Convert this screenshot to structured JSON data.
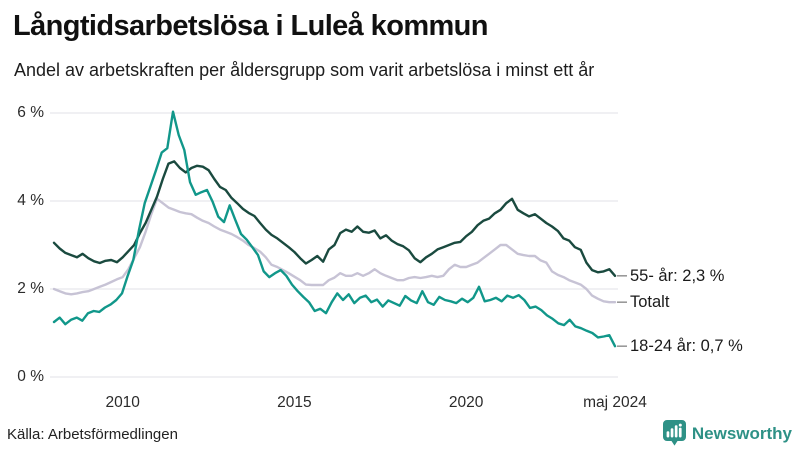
{
  "title": "Långtidsarbetslösa i Luleå kommun",
  "subtitle": "Andel av arbetskraften per åldersgrupp som varit arbetslösa i minst ett år",
  "source": "Källa: Arbetsförmedlingen",
  "branding": {
    "name": "Newsworthy"
  },
  "colors": {
    "background": "#ffffff",
    "title": "#111111",
    "text": "#1d1d1d",
    "tick_text": "#2b2b2b",
    "grid": "#e8e8ec",
    "label_dash": "#999999",
    "brand_teal": "#2e9186"
  },
  "chart_data": {
    "type": "line",
    "title": "Långtidsarbetslösa i Luleå kommun",
    "subtitle": "Andel av arbetskraften per åldersgrupp som varit arbetslösa i minst ett år",
    "unit": "% av arbetskraften",
    "x_start": "2008-01",
    "x_end": "2024-05",
    "x_step_months": 2,
    "ylim": [
      0,
      6.6
    ],
    "grid": true,
    "legend_position": "right-end-labels",
    "y_ticks": [
      {
        "value": 6,
        "label": "6 %"
      },
      {
        "value": 4,
        "label": "4 %"
      },
      {
        "value": 2,
        "label": "2 %"
      },
      {
        "value": 0,
        "label": "0 %"
      }
    ],
    "x_ticks": [
      {
        "label": "2010",
        "month_index": 24
      },
      {
        "label": "2015",
        "month_index": 84
      },
      {
        "label": "2020",
        "month_index": 144
      },
      {
        "label": "maj 2024",
        "month_index": 196
      }
    ],
    "series": [
      {
        "name": "Totalt",
        "end_label": "Totalt",
        "end_value": "1,7 %",
        "color": "#c7c3d5",
        "values": [
          2.0,
          1.95,
          1.9,
          1.88,
          1.9,
          1.93,
          1.95,
          2.0,
          2.05,
          2.1,
          2.16,
          2.22,
          2.27,
          2.45,
          2.7,
          2.95,
          3.3,
          3.7,
          4.05,
          3.95,
          3.85,
          3.8,
          3.75,
          3.72,
          3.7,
          3.62,
          3.55,
          3.5,
          3.42,
          3.35,
          3.3,
          3.25,
          3.18,
          3.1,
          3.0,
          2.93,
          2.85,
          2.72,
          2.55,
          2.5,
          2.43,
          2.36,
          2.28,
          2.2,
          2.1,
          2.09,
          2.09,
          2.09,
          2.2,
          2.26,
          2.36,
          2.3,
          2.3,
          2.36,
          2.3,
          2.36,
          2.45,
          2.36,
          2.3,
          2.25,
          2.2,
          2.2,
          2.25,
          2.27,
          2.25,
          2.27,
          2.3,
          2.27,
          2.3,
          2.45,
          2.55,
          2.5,
          2.5,
          2.55,
          2.6,
          2.7,
          2.8,
          2.9,
          3.0,
          3.0,
          2.9,
          2.8,
          2.77,
          2.75,
          2.75,
          2.65,
          2.6,
          2.4,
          2.32,
          2.27,
          2.2,
          2.15,
          2.1,
          2.0,
          1.85,
          1.78,
          1.72,
          1.7,
          1.7
        ]
      },
      {
        "name": "55- år",
        "end_label": "55- år: 2,3 %",
        "end_value": "2,3 %",
        "color": "#1a4a3f",
        "values": [
          3.05,
          2.92,
          2.82,
          2.77,
          2.72,
          2.8,
          2.7,
          2.63,
          2.59,
          2.64,
          2.66,
          2.61,
          2.72,
          2.86,
          3.0,
          3.27,
          3.5,
          3.8,
          4.1,
          4.5,
          4.85,
          4.9,
          4.75,
          4.65,
          4.75,
          4.8,
          4.78,
          4.7,
          4.5,
          4.32,
          4.25,
          4.07,
          3.95,
          3.82,
          3.73,
          3.66,
          3.5,
          3.35,
          3.23,
          3.15,
          3.05,
          2.95,
          2.84,
          2.7,
          2.58,
          2.66,
          2.75,
          2.62,
          2.9,
          3.0,
          3.27,
          3.35,
          3.3,
          3.42,
          3.3,
          3.28,
          3.33,
          3.15,
          3.22,
          3.1,
          3.02,
          2.97,
          2.88,
          2.7,
          2.61,
          2.72,
          2.8,
          2.9,
          2.95,
          3.0,
          3.05,
          3.07,
          3.2,
          3.3,
          3.45,
          3.55,
          3.6,
          3.72,
          3.8,
          3.95,
          4.05,
          3.8,
          3.72,
          3.65,
          3.7,
          3.6,
          3.5,
          3.42,
          3.32,
          3.15,
          3.1,
          2.95,
          2.89,
          2.6,
          2.43,
          2.38,
          2.4,
          2.45,
          2.3
        ]
      },
      {
        "name": "18-24 år",
        "end_label": "18-24 år: 0,7 %",
        "end_value": "0,7 %",
        "color": "#11978a",
        "values": [
          1.25,
          1.35,
          1.2,
          1.3,
          1.35,
          1.28,
          1.45,
          1.5,
          1.48,
          1.58,
          1.65,
          1.75,
          1.9,
          2.3,
          2.66,
          3.34,
          3.95,
          4.32,
          4.7,
          5.1,
          5.2,
          6.03,
          5.5,
          5.16,
          4.43,
          4.14,
          4.2,
          4.25,
          3.98,
          3.64,
          3.52,
          3.9,
          3.57,
          3.25,
          3.12,
          2.95,
          2.77,
          2.4,
          2.27,
          2.36,
          2.43,
          2.3,
          2.1,
          1.95,
          1.82,
          1.7,
          1.5,
          1.55,
          1.45,
          1.7,
          1.9,
          1.75,
          1.88,
          1.68,
          1.8,
          1.85,
          1.7,
          1.76,
          1.6,
          1.74,
          1.68,
          1.62,
          1.84,
          1.74,
          1.68,
          1.95,
          1.7,
          1.64,
          1.82,
          1.75,
          1.72,
          1.68,
          1.78,
          1.7,
          1.8,
          2.05,
          1.72,
          1.75,
          1.8,
          1.72,
          1.85,
          1.8,
          1.86,
          1.75,
          1.57,
          1.6,
          1.52,
          1.4,
          1.32,
          1.22,
          1.18,
          1.3,
          1.15,
          1.11,
          1.05,
          1.0,
          0.9,
          0.92,
          0.95,
          0.7
        ]
      }
    ]
  }
}
